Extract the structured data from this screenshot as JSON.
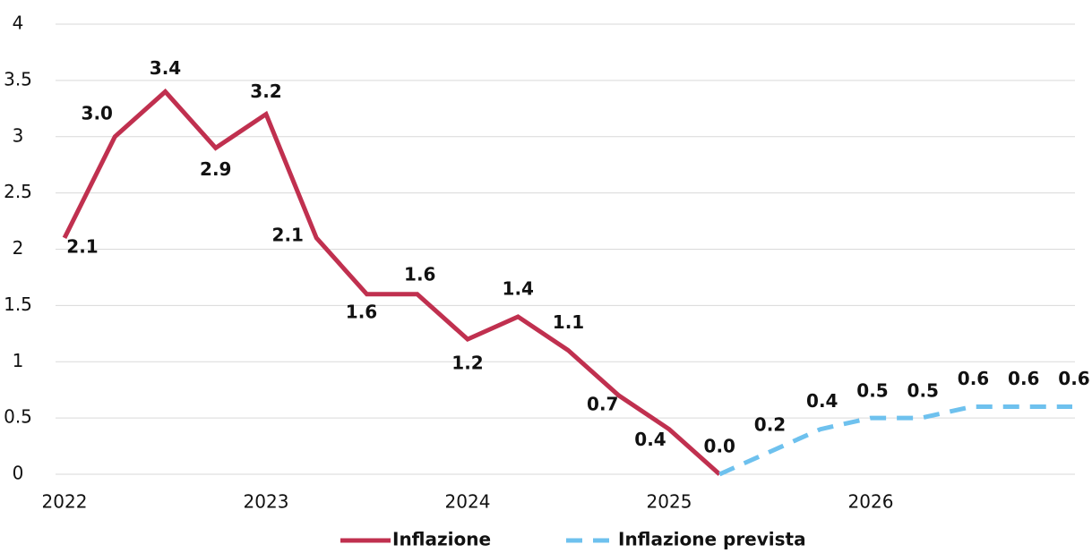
{
  "chart_data": {
    "type": "line",
    "categories": [
      "2022",
      null,
      null,
      null,
      "2023",
      null,
      null,
      null,
      "2024",
      null,
      null,
      null,
      "2025",
      null,
      null,
      null,
      "2026",
      null,
      null,
      null,
      null
    ],
    "series": [
      {
        "name": "Inflazione",
        "color": "#c0304f",
        "dash": false,
        "values": [
          2.1,
          3.0,
          3.4,
          2.9,
          3.2,
          2.1,
          1.6,
          1.6,
          1.2,
          1.4,
          1.1,
          0.7,
          0.4,
          0.0,
          null,
          null,
          null,
          null,
          null,
          null,
          null
        ],
        "value_labels": [
          "2.1",
          "3.0",
          "3.4",
          "2.9",
          "3.2",
          "2.1",
          "1.6",
          "1.6",
          "1.2",
          "1.4",
          "1.1",
          "0.7",
          "0.4",
          "0.0",
          null,
          null,
          null,
          null,
          null,
          null,
          null
        ]
      },
      {
        "name": "Inflazione prevista",
        "color": "#6ec1ee",
        "dash": true,
        "values": [
          null,
          null,
          null,
          null,
          null,
          null,
          null,
          null,
          null,
          null,
          null,
          null,
          null,
          0.0,
          0.2,
          0.4,
          0.5,
          0.5,
          0.6,
          0.6,
          0.6
        ],
        "value_labels": [
          null,
          null,
          null,
          null,
          null,
          null,
          null,
          null,
          null,
          null,
          null,
          null,
          null,
          null,
          "0.2",
          "0.4",
          "0.5",
          "0.5",
          "0.6",
          "0.6",
          "0.6"
        ]
      }
    ],
    "ylim": [
      0,
      4
    ],
    "yticks": [
      0,
      0.5,
      1,
      1.5,
      2,
      2.5,
      3,
      3.5,
      4
    ],
    "grid": true,
    "legend": "bottom"
  }
}
